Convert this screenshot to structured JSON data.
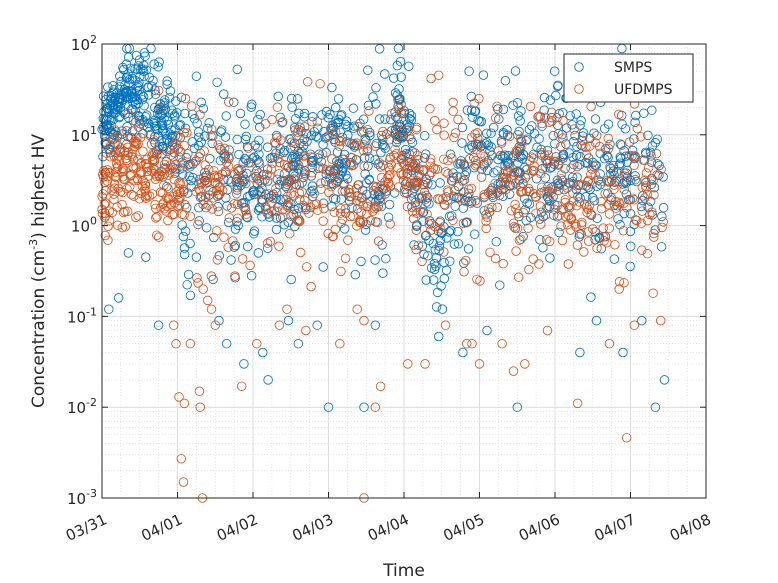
{
  "chart_data": {
    "type": "scatter",
    "xlabel": "Time",
    "ylabel_parts": [
      "Concentration (cm",
      "-3",
      ") highest HV"
    ],
    "xlim": [
      0,
      8
    ],
    "ylim": [
      0.001,
      100
    ],
    "yscale": "log",
    "x_ticks": [
      0,
      1,
      2,
      3,
      4,
      5,
      6,
      7,
      8
    ],
    "x_tick_labels": [
      "03/31",
      "04/01",
      "04/02",
      "04/03",
      "04/04",
      "04/05",
      "04/06",
      "04/07",
      "04/08"
    ],
    "y_ticks": [
      -3,
      -2,
      -1,
      0,
      1,
      2
    ],
    "y_tick_labels": [
      {
        "base": "10",
        "exp": "-3"
      },
      {
        "base": "10",
        "exp": "-2"
      },
      {
        "base": "10",
        "exp": "-1"
      },
      {
        "base": "10",
        "exp": "0"
      },
      {
        "base": "10",
        "exp": "1"
      },
      {
        "base": "10",
        "exp": "2"
      }
    ],
    "grid": "major and minor",
    "legend_position": "top-right",
    "marker": "open-circle",
    "series": [
      {
        "name": "SMPS",
        "color": "#0072BD",
        "segments": [
          {
            "x": [
              0.0,
              0.5
            ],
            "y": [
              14,
              33
            ],
            "spread": 0.22,
            "n": 150
          },
          {
            "x": [
              0.5,
              1.0
            ],
            "y": [
              24,
              10
            ],
            "spread": 0.25,
            "n": 110
          },
          {
            "x": [
              1.0,
              2.0
            ],
            "y": [
              4,
              3.5
            ],
            "spread": 0.45,
            "n": 140
          },
          {
            "x": [
              2.0,
              2.6
            ],
            "y": [
              3.5,
              4
            ],
            "spread": 0.42,
            "n": 90
          },
          {
            "x": [
              2.5,
              3.35
            ],
            "y": [
              6,
              7
            ],
            "spread": 0.35,
            "n": 140
          },
          {
            "x": [
              3.35,
              3.85
            ],
            "y": [
              2.5,
              6
            ],
            "spread": 0.5,
            "n": 70
          },
          {
            "x": [
              3.85,
              4.1
            ],
            "y": [
              20,
              7
            ],
            "spread": 0.3,
            "n": 60
          },
          {
            "x": [
              4.1,
              4.55
            ],
            "y": [
              3,
              0.5
            ],
            "spread": 0.35,
            "n": 70
          },
          {
            "x": [
              4.55,
              5.0
            ],
            "y": [
              1.5,
              5
            ],
            "spread": 0.5,
            "n": 60
          },
          {
            "x": [
              5.0,
              6.0
            ],
            "y": [
              5,
              5
            ],
            "spread": 0.42,
            "n": 150
          },
          {
            "x": [
              6.0,
              7.45
            ],
            "y": [
              5,
              3
            ],
            "spread": 0.45,
            "n": 180
          }
        ],
        "extra_points": [
          [
            0.09,
            0.12
          ],
          [
            0.22,
            0.16
          ],
          [
            0.75,
            0.08
          ],
          [
            1.55,
            0.09
          ],
          [
            1.65,
            0.05
          ],
          [
            1.88,
            0.03
          ],
          [
            2.13,
            0.04
          ],
          [
            2.2,
            0.02
          ],
          [
            2.47,
            0.09
          ],
          [
            2.6,
            0.05
          ],
          [
            2.85,
            0.08
          ],
          [
            3.0,
            0.01
          ],
          [
            3.47,
            0.01
          ],
          [
            3.62,
            0.08
          ],
          [
            4.46,
            0.06
          ],
          [
            5.1,
            0.07
          ],
          [
            5.5,
            0.01
          ],
          [
            6.55,
            0.09
          ],
          [
            6.9,
            0.04
          ],
          [
            7.15,
            0.09
          ],
          [
            7.33,
            0.01
          ],
          [
            7.45,
            0.02
          ],
          [
            4.78,
            0.04
          ],
          [
            0.58,
            0.45
          ],
          [
            1.25,
            0.45
          ],
          [
            2.93,
            0.35
          ],
          [
            5.8,
            0.7
          ],
          [
            6.33,
            0.04
          ],
          [
            3.72,
            0.3
          ],
          [
            0.35,
            0.5
          ]
        ]
      },
      {
        "name": "UFDMPS",
        "color": "#D95319",
        "segments": [
          {
            "x": [
              0.0,
              0.55
            ],
            "y": [
              3,
              5
            ],
            "spread": 0.28,
            "n": 120
          },
          {
            "x": [
              0.55,
              1.05
            ],
            "y": [
              3.5,
              2.5
            ],
            "spread": 0.3,
            "n": 90
          },
          {
            "x": [
              1.05,
              2.0
            ],
            "y": [
              2.5,
              2.5
            ],
            "spread": 0.4,
            "n": 90
          },
          {
            "x": [
              2.0,
              3.0
            ],
            "y": [
              2.5,
              2.5
            ],
            "spread": 0.4,
            "n": 100
          },
          {
            "x": [
              3.0,
              3.85
            ],
            "y": [
              2.5,
              3.5
            ],
            "spread": 0.35,
            "n": 100
          },
          {
            "x": [
              3.85,
              4.15
            ],
            "y": [
              8,
              4
            ],
            "spread": 0.3,
            "n": 40
          },
          {
            "x": [
              4.15,
              5.0
            ],
            "y": [
              2.5,
              2.5
            ],
            "spread": 0.45,
            "n": 90
          },
          {
            "x": [
              5.0,
              6.0
            ],
            "y": [
              3,
              2.5
            ],
            "spread": 0.42,
            "n": 110
          },
          {
            "x": [
              6.0,
              7.45
            ],
            "y": [
              2.5,
              2.5
            ],
            "spread": 0.42,
            "n": 150
          }
        ],
        "extra_points": [
          [
            1.05,
            0.0027
          ],
          [
            1.08,
            0.0015
          ],
          [
            1.33,
            0.001
          ],
          [
            3.47,
            0.001
          ],
          [
            1.02,
            0.013
          ],
          [
            1.09,
            0.011
          ],
          [
            1.3,
            0.01
          ],
          [
            1.85,
            0.017
          ],
          [
            3.69,
            0.017
          ],
          [
            3.62,
            0.01
          ],
          [
            6.95,
            0.0046
          ],
          [
            6.3,
            0.011
          ],
          [
            5.3,
            0.05
          ],
          [
            5.45,
            0.025
          ],
          [
            5.6,
            0.03
          ],
          [
            4.28,
            0.03
          ],
          [
            4.05,
            0.03
          ],
          [
            1.29,
            0.015
          ],
          [
            1.34,
            0.2
          ],
          [
            1.4,
            0.15
          ],
          [
            1.45,
            0.12
          ],
          [
            1.5,
            0.08
          ],
          [
            0.95,
            0.08
          ],
          [
            0.98,
            0.05
          ],
          [
            2.35,
            0.08
          ],
          [
            2.7,
            0.07
          ],
          [
            3.15,
            0.05
          ],
          [
            3.47,
            0.09
          ],
          [
            4.55,
            0.08
          ],
          [
            4.83,
            0.05
          ],
          [
            5.9,
            0.07
          ],
          [
            6.72,
            0.05
          ],
          [
            7.05,
            0.08
          ],
          [
            7.3,
            0.18
          ],
          [
            7.4,
            0.09
          ],
          [
            6.85,
            0.2
          ],
          [
            5.0,
            0.03
          ],
          [
            1.17,
            0.05
          ],
          [
            2.05,
            0.05
          ],
          [
            2.45,
            0.12
          ],
          [
            3.38,
            0.12
          ],
          [
            4.9,
            0.05
          ]
        ]
      }
    ]
  }
}
